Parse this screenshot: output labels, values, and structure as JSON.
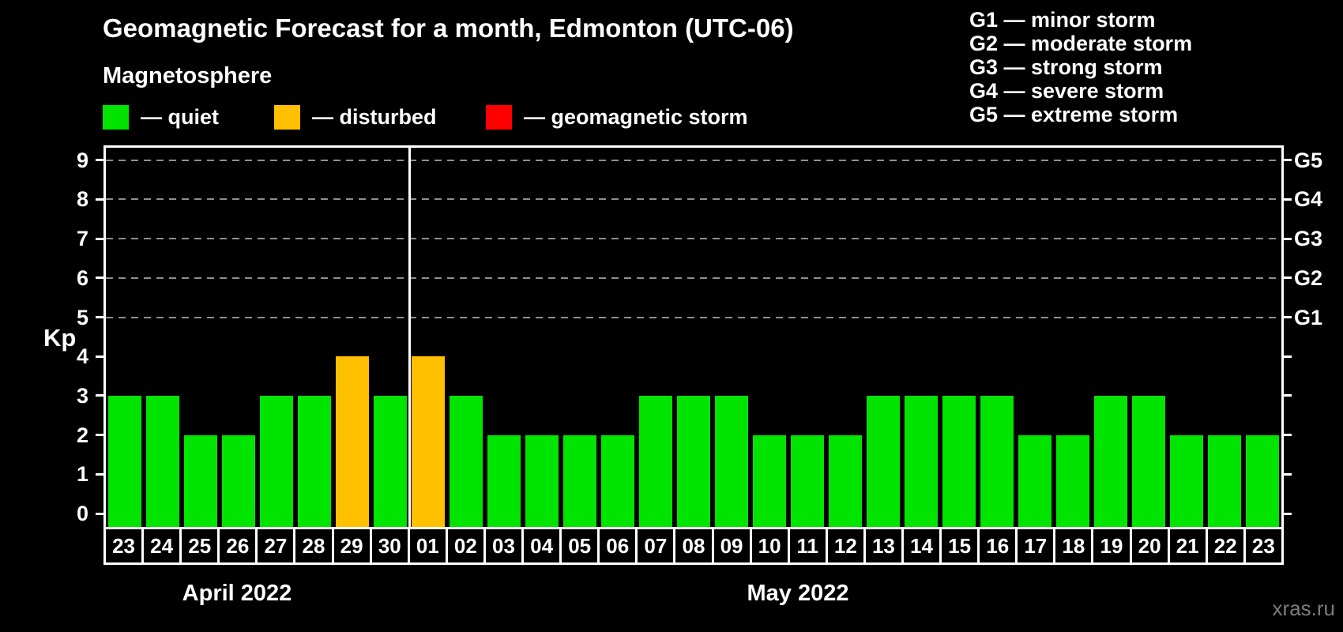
{
  "title": "Geomagnetic Forecast for a month, Edmonton (UTC-06)",
  "subtitle": "Magnetosphere",
  "legend": {
    "items": [
      {
        "key": "quiet",
        "label": "— quiet",
        "color": "#00e400"
      },
      {
        "key": "disturbed",
        "label": "— disturbed",
        "color": "#ffc000"
      },
      {
        "key": "storm",
        "label": "— geomagnetic storm",
        "color": "#ff0000"
      }
    ]
  },
  "g_legend": [
    "G1 — minor storm",
    "G2 — moderate storm",
    "G3 — strong storm",
    "G4 — severe storm",
    "G5 — extreme storm"
  ],
  "watermark": "xras.ru",
  "chart_data": {
    "type": "bar",
    "ylabel": "Kp",
    "ylim": [
      0,
      9.4
    ],
    "yticks": [
      0,
      1,
      2,
      3,
      4,
      5,
      6,
      7,
      8,
      9
    ],
    "gridlines_at": [
      5,
      6,
      7,
      8,
      9
    ],
    "grid": "dashed horizontal at Kp 5-9 only",
    "right_axis": [
      {
        "value": 5,
        "label": "G1"
      },
      {
        "value": 6,
        "label": "G2"
      },
      {
        "value": 7,
        "label": "G3"
      },
      {
        "value": 8,
        "label": "G4"
      },
      {
        "value": 9,
        "label": "G5"
      }
    ],
    "series": [
      {
        "month": "April 2022",
        "days": [
          "23",
          "24",
          "25",
          "26",
          "27",
          "28",
          "29",
          "30"
        ],
        "kp": [
          3,
          3,
          2,
          2,
          3,
          3,
          4,
          3
        ],
        "status": [
          "quiet",
          "quiet",
          "quiet",
          "quiet",
          "quiet",
          "quiet",
          "disturbed",
          "quiet"
        ]
      },
      {
        "month": "May 2022",
        "days": [
          "01",
          "02",
          "03",
          "04",
          "05",
          "06",
          "07",
          "08",
          "09",
          "10",
          "11",
          "12",
          "13",
          "14",
          "15",
          "16",
          "17",
          "18",
          "19",
          "20",
          "21",
          "22",
          "23"
        ],
        "kp": [
          4,
          3,
          2,
          2,
          2,
          2,
          3,
          3,
          3,
          2,
          2,
          2,
          3,
          3,
          3,
          3,
          2,
          2,
          3,
          3,
          2,
          2,
          2
        ],
        "status": [
          "disturbed",
          "quiet",
          "quiet",
          "quiet",
          "quiet",
          "quiet",
          "quiet",
          "quiet",
          "quiet",
          "quiet",
          "quiet",
          "quiet",
          "quiet",
          "quiet",
          "quiet",
          "quiet",
          "quiet",
          "quiet",
          "quiet",
          "quiet",
          "quiet",
          "quiet",
          "quiet"
        ]
      }
    ]
  }
}
